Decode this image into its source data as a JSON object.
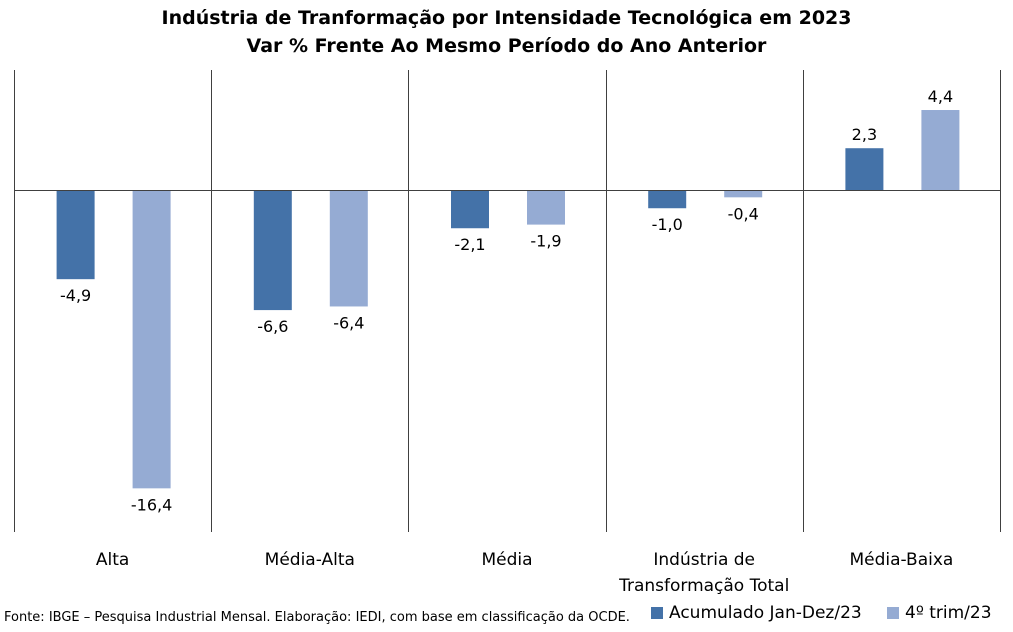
{
  "title": "Indústria de Tranformação por Intensidade Tecnológica em 2023",
  "subtitle": "Var % Frente Ao Mesmo Período do Ano Anterior",
  "source": "Fonte: IBGE – Pesquisa Industrial Mensal. Elaboração: IEDI, com base em classificação da OCDE.",
  "chart_data": {
    "type": "bar",
    "title": "Indústria de Tranformação por Intensidade Tecnológica em 2023",
    "subtitle": "Var % Frente Ao Mesmo Período do Ano Anterior",
    "categories": [
      [
        "Alta"
      ],
      [
        "Média-Alta"
      ],
      [
        "Média"
      ],
      [
        "Indústria de",
        "Transformação Total"
      ],
      [
        "Média-Baixa"
      ]
    ],
    "series": [
      {
        "name": "Acumulado Jan-Dez/23",
        "color": "#4472A8",
        "values": [
          -4.9,
          -6.6,
          -2.1,
          -1.0,
          2.3
        ],
        "labels": [
          "-4,9",
          "-6,6",
          "-2,1",
          "-1,0",
          "2,3"
        ]
      },
      {
        "name": "4º trim/23",
        "color": "#95ABD3",
        "values": [
          -16.4,
          -6.4,
          -1.9,
          -0.4,
          4.4
        ],
        "labels": [
          "-16,4",
          "-6,4",
          "-1,9",
          "-0,4",
          "4,4"
        ]
      }
    ],
    "ylim": [
      -18.8,
      6.6
    ],
    "grid": false,
    "legend_position": "bottom-right"
  }
}
